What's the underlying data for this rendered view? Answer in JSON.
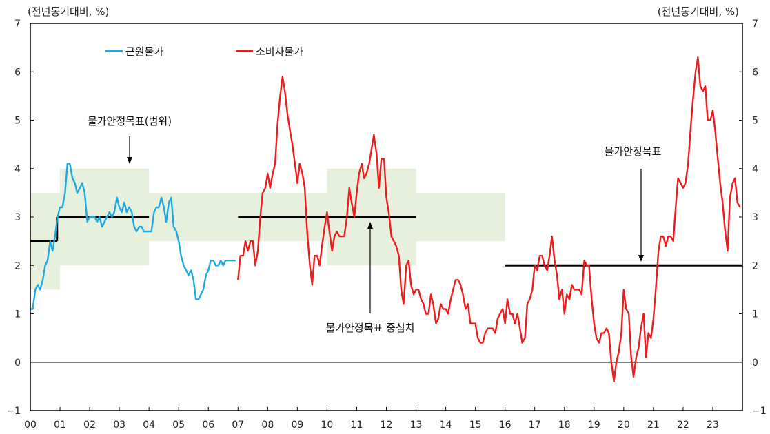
{
  "chart_data": {
    "type": "line",
    "unit_left": "(전년동기대비, %)",
    "unit_right": "(전년동기대비, %)",
    "ylim": [
      -1,
      7
    ],
    "yticks": [
      "7",
      "6",
      "5",
      "4",
      "3",
      "2",
      "1",
      "0",
      "−1"
    ],
    "xlim": [
      2000,
      2024
    ],
    "xticks": [
      "00",
      "01",
      "02",
      "03",
      "04",
      "05",
      "06",
      "07",
      "08",
      "09",
      "10",
      "11",
      "12",
      "13",
      "14",
      "15",
      "16",
      "17",
      "18",
      "19",
      "20",
      "21",
      "22",
      "23"
    ],
    "legend": [
      "근원물가",
      "소비자물가"
    ],
    "annotations": {
      "band_label": "물가안정목표(범위)",
      "center_label": "물가안정목표 중심치",
      "point_label": "물가안정목표"
    },
    "colors": {
      "core": "#1fa9e1",
      "cpi": "#ee1c1c",
      "target": "#000000",
      "band": "#e6f0dc"
    },
    "target_bands": [
      {
        "x0": 2000,
        "x1": 2001,
        "y0": 1.5,
        "y1": 3.5
      },
      {
        "x0": 2001,
        "x1": 2004,
        "y0": 2.0,
        "y1": 4.0
      },
      {
        "x0": 2004,
        "x1": 2010,
        "y0": 2.5,
        "y1": 3.5
      },
      {
        "x0": 2010,
        "x1": 2013,
        "y0": 2.0,
        "y1": 4.0
      },
      {
        "x0": 2013,
        "x1": 2016,
        "y0": 2.5,
        "y1": 3.5
      }
    ],
    "target_line": [
      {
        "x0": 2000,
        "x1": 2000.9,
        "y": 2.5
      },
      {
        "x0": 2000.9,
        "x1": 2001,
        "y": 3.0
      },
      {
        "x0": 2001,
        "x1": 2004,
        "y": 3.0
      },
      {
        "x0": 2007,
        "x1": 2013,
        "y": 3.0
      },
      {
        "x0": 2016,
        "x1": 2024,
        "y": 2.0
      }
    ],
    "series": [
      {
        "name": "근원물가",
        "x": [
          2000.0,
          2000.08,
          2000.17,
          2000.25,
          2000.33,
          2000.42,
          2000.5,
          2000.58,
          2000.67,
          2000.75,
          2000.83,
          2000.92,
          2001.0,
          2001.08,
          2001.17,
          2001.25,
          2001.33,
          2001.42,
          2001.5,
          2001.58,
          2001.67,
          2001.75,
          2001.83,
          2001.92,
          2002.0,
          2002.08,
          2002.17,
          2002.25,
          2002.33,
          2002.42,
          2002.5,
          2002.58,
          2002.67,
          2002.75,
          2002.83,
          2002.92,
          2003.0,
          2003.08,
          2003.17,
          2003.25,
          2003.33,
          2003.42,
          2003.5,
          2003.58,
          2003.67,
          2003.75,
          2003.83,
          2003.92,
          2004.0,
          2004.08,
          2004.17,
          2004.25,
          2004.33,
          2004.42,
          2004.5,
          2004.58,
          2004.67,
          2004.75,
          2004.83,
          2004.92,
          2005.0,
          2005.08,
          2005.17,
          2005.25,
          2005.33,
          2005.42,
          2005.5,
          2005.58,
          2005.67,
          2005.75,
          2005.83,
          2005.92,
          2006.0,
          2006.08,
          2006.17,
          2006.25,
          2006.33,
          2006.42,
          2006.5,
          2006.58,
          2006.67,
          2006.75,
          2006.83,
          2006.92
        ],
        "values": [
          1.1,
          1.1,
          1.5,
          1.6,
          1.5,
          1.7,
          2.0,
          2.1,
          2.5,
          2.3,
          2.6,
          3.0,
          3.2,
          3.2,
          3.5,
          4.1,
          4.1,
          3.8,
          3.7,
          3.5,
          3.6,
          3.7,
          3.5,
          2.9,
          3.0,
          3.0,
          3.0,
          2.9,
          3.0,
          2.8,
          2.9,
          3.0,
          3.1,
          3.0,
          3.1,
          3.4,
          3.2,
          3.1,
          3.3,
          3.1,
          3.2,
          3.1,
          2.8,
          2.7,
          2.8,
          2.8,
          2.7,
          2.7,
          2.7,
          2.7,
          3.1,
          3.2,
          3.2,
          3.4,
          3.2,
          2.9,
          3.3,
          3.4,
          2.8,
          2.7,
          2.5,
          2.2,
          2.0,
          1.9,
          1.8,
          1.9,
          1.7,
          1.3,
          1.3,
          1.4,
          1.5,
          1.8,
          1.9,
          2.1,
          2.1,
          2.0,
          2.0,
          2.1,
          2.0,
          2.1,
          2.1,
          2.1,
          2.1,
          2.1
        ]
      },
      {
        "name": "소비자물가",
        "x": [
          2007.0,
          2007.08,
          2007.17,
          2007.25,
          2007.33,
          2007.42,
          2007.5,
          2007.58,
          2007.67,
          2007.75,
          2007.83,
          2007.92,
          2008.0,
          2008.08,
          2008.17,
          2008.25,
          2008.33,
          2008.42,
          2008.5,
          2008.58,
          2008.67,
          2008.75,
          2008.83,
          2008.92,
          2009.0,
          2009.08,
          2009.17,
          2009.25,
          2009.33,
          2009.42,
          2009.5,
          2009.58,
          2009.67,
          2009.75,
          2009.83,
          2009.92,
          2010.0,
          2010.08,
          2010.17,
          2010.25,
          2010.33,
          2010.42,
          2010.5,
          2010.58,
          2010.67,
          2010.75,
          2010.83,
          2010.92,
          2011.0,
          2011.08,
          2011.17,
          2011.25,
          2011.33,
          2011.42,
          2011.5,
          2011.58,
          2011.67,
          2011.75,
          2011.83,
          2011.92,
          2012.0,
          2012.08,
          2012.17,
          2012.25,
          2012.33,
          2012.42,
          2012.5,
          2012.58,
          2012.67,
          2012.75,
          2012.83,
          2012.92,
          2013.0,
          2013.08,
          2013.17,
          2013.25,
          2013.33,
          2013.42,
          2013.5,
          2013.58,
          2013.67,
          2013.75,
          2013.83,
          2013.92,
          2014.0,
          2014.08,
          2014.17,
          2014.25,
          2014.33,
          2014.42,
          2014.5,
          2014.58,
          2014.67,
          2014.75,
          2014.83,
          2014.92,
          2015.0,
          2015.08,
          2015.17,
          2015.25,
          2015.33,
          2015.42,
          2015.5,
          2015.58,
          2015.67,
          2015.75,
          2015.83,
          2015.92,
          2016.0,
          2016.08,
          2016.17,
          2016.25,
          2016.33,
          2016.42,
          2016.5,
          2016.58,
          2016.67,
          2016.75,
          2016.83,
          2016.92,
          2017.0,
          2017.08,
          2017.17,
          2017.25,
          2017.33,
          2017.42,
          2017.5,
          2017.58,
          2017.67,
          2017.75,
          2017.83,
          2017.92,
          2018.0,
          2018.08,
          2018.17,
          2018.25,
          2018.33,
          2018.42,
          2018.5,
          2018.58,
          2018.67,
          2018.75,
          2018.83,
          2018.92,
          2019.0,
          2019.08,
          2019.17,
          2019.25,
          2019.33,
          2019.42,
          2019.5,
          2019.58,
          2019.67,
          2019.75,
          2019.83,
          2019.92,
          2020.0,
          2020.08,
          2020.17,
          2020.25,
          2020.33,
          2020.42,
          2020.5,
          2020.58,
          2020.67,
          2020.75,
          2020.83,
          2020.92,
          2021.0,
          2021.08,
          2021.17,
          2021.25,
          2021.33,
          2021.42,
          2021.5,
          2021.58,
          2021.67,
          2021.75,
          2021.83,
          2021.92,
          2022.0,
          2022.08,
          2022.17,
          2022.25,
          2022.33,
          2022.42,
          2022.5,
          2022.58,
          2022.67,
          2022.75,
          2022.83,
          2022.92,
          2023.0,
          2023.08,
          2023.17,
          2023.25,
          2023.33,
          2023.42,
          2023.5,
          2023.58,
          2023.67,
          2023.75,
          2023.83,
          2023.92
        ],
        "values": [
          1.7,
          2.2,
          2.2,
          2.5,
          2.3,
          2.5,
          2.5,
          2.0,
          2.3,
          3.0,
          3.5,
          3.6,
          3.9,
          3.6,
          3.9,
          4.1,
          4.9,
          5.5,
          5.9,
          5.6,
          5.1,
          4.8,
          4.5,
          4.1,
          3.7,
          4.1,
          3.9,
          3.6,
          2.7,
          2.0,
          1.6,
          2.2,
          2.2,
          2.0,
          2.4,
          2.8,
          3.1,
          2.7,
          2.3,
          2.6,
          2.7,
          2.6,
          2.6,
          2.6,
          3.0,
          3.6,
          3.3,
          3.0,
          3.5,
          3.9,
          4.1,
          3.8,
          3.9,
          4.1,
          4.4,
          4.7,
          4.3,
          3.6,
          4.2,
          4.2,
          3.4,
          3.1,
          2.6,
          2.5,
          2.4,
          2.2,
          1.5,
          1.2,
          2.0,
          2.1,
          1.6,
          1.4,
          1.5,
          1.5,
          1.3,
          1.2,
          1.0,
          1.0,
          1.4,
          1.2,
          0.8,
          0.9,
          1.2,
          1.1,
          1.1,
          1.0,
          1.3,
          1.5,
          1.7,
          1.7,
          1.6,
          1.4,
          1.1,
          1.2,
          0.8,
          0.8,
          0.8,
          0.5,
          0.4,
          0.4,
          0.6,
          0.7,
          0.7,
          0.7,
          0.6,
          0.9,
          1.0,
          1.1,
          0.8,
          1.3,
          1.0,
          1.0,
          0.8,
          1.0,
          0.7,
          0.4,
          0.5,
          1.2,
          1.3,
          1.5,
          2.0,
          1.9,
          2.2,
          2.2,
          2.0,
          1.9,
          2.2,
          2.6,
          2.1,
          1.8,
          1.3,
          1.5,
          1.0,
          1.4,
          1.3,
          1.6,
          1.5,
          1.5,
          1.5,
          1.4,
          2.1,
          2.0,
          2.0,
          1.3,
          0.8,
          0.5,
          0.4,
          0.6,
          0.6,
          0.7,
          0.6,
          0.0,
          -0.4,
          0.0,
          0.2,
          0.6,
          1.5,
          1.1,
          1.0,
          0.1,
          -0.3,
          0.1,
          0.3,
          0.7,
          1.0,
          0.1,
          0.6,
          0.5,
          0.9,
          1.5,
          2.3,
          2.6,
          2.6,
          2.4,
          2.6,
          2.6,
          2.5,
          3.2,
          3.8,
          3.7,
          3.6,
          3.7,
          4.1,
          4.8,
          5.4,
          6.0,
          6.3,
          5.7,
          5.6,
          5.7,
          5.0,
          5.0,
          5.2,
          4.8,
          4.2,
          3.7,
          3.3,
          2.7,
          2.3,
          3.4,
          3.7,
          3.8,
          3.3,
          3.2
        ]
      }
    ]
  }
}
